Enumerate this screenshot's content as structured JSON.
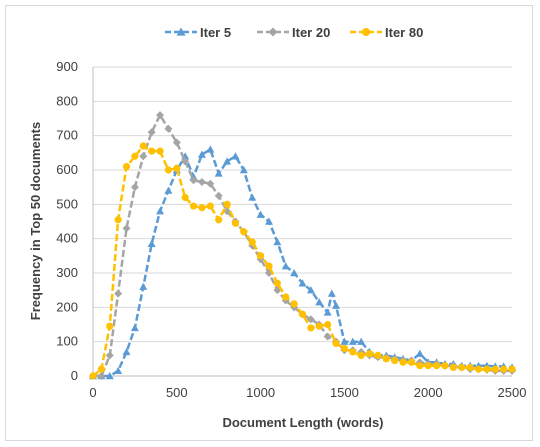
{
  "chart_data": {
    "type": "line",
    "title": "",
    "xlabel": "Document Length (words)",
    "ylabel": "Frequency in Top 50 documents",
    "xlim": [
      0,
      2500
    ],
    "ylim": [
      0,
      900
    ],
    "x_ticks": [
      0,
      500,
      1000,
      1500,
      2000,
      2500
    ],
    "y_ticks": [
      0,
      100,
      200,
      300,
      400,
      500,
      600,
      700,
      800,
      900
    ],
    "grid": "horizontal",
    "legend_position": "top",
    "series": [
      {
        "name": "Iter 5",
        "color": "#5b9bd5",
        "marker": "triangle",
        "dash": "dashed",
        "points": [
          [
            0,
            0
          ],
          [
            50,
            0
          ],
          [
            100,
            0
          ],
          [
            150,
            15
          ],
          [
            200,
            70
          ],
          [
            250,
            140
          ],
          [
            300,
            260
          ],
          [
            350,
            385
          ],
          [
            400,
            480
          ],
          [
            450,
            540
          ],
          [
            500,
            600
          ],
          [
            550,
            640
          ],
          [
            600,
            580
          ],
          [
            650,
            645
          ],
          [
            700,
            660
          ],
          [
            750,
            590
          ],
          [
            800,
            625
          ],
          [
            850,
            640
          ],
          [
            900,
            600
          ],
          [
            950,
            520
          ],
          [
            1000,
            470
          ],
          [
            1050,
            450
          ],
          [
            1100,
            390
          ],
          [
            1150,
            320
          ],
          [
            1200,
            300
          ],
          [
            1250,
            270
          ],
          [
            1300,
            250
          ],
          [
            1350,
            215
          ],
          [
            1400,
            185
          ],
          [
            1425,
            240
          ],
          [
            1450,
            205
          ],
          [
            1500,
            100
          ],
          [
            1550,
            100
          ],
          [
            1600,
            100
          ],
          [
            1650,
            70
          ],
          [
            1700,
            60
          ],
          [
            1750,
            60
          ],
          [
            1800,
            55
          ],
          [
            1850,
            50
          ],
          [
            1900,
            45
          ],
          [
            1950,
            65
          ],
          [
            2000,
            40
          ],
          [
            2050,
            40
          ],
          [
            2100,
            35
          ],
          [
            2150,
            35
          ],
          [
            2200,
            30
          ],
          [
            2250,
            30
          ],
          [
            2300,
            30
          ],
          [
            2350,
            30
          ],
          [
            2400,
            28
          ],
          [
            2450,
            28
          ],
          [
            2500,
            25
          ]
        ]
      },
      {
        "name": "Iter 20",
        "color": "#a5a5a5",
        "marker": "diamond",
        "dash": "dashed",
        "points": [
          [
            0,
            0
          ],
          [
            50,
            0
          ],
          [
            100,
            60
          ],
          [
            150,
            240
          ],
          [
            200,
            430
          ],
          [
            250,
            550
          ],
          [
            300,
            640
          ],
          [
            350,
            710
          ],
          [
            400,
            760
          ],
          [
            450,
            720
          ],
          [
            500,
            680
          ],
          [
            550,
            625
          ],
          [
            600,
            570
          ],
          [
            650,
            565
          ],
          [
            700,
            560
          ],
          [
            750,
            525
          ],
          [
            800,
            480
          ],
          [
            850,
            450
          ],
          [
            900,
            420
          ],
          [
            950,
            380
          ],
          [
            1000,
            340
          ],
          [
            1050,
            300
          ],
          [
            1100,
            250
          ],
          [
            1150,
            220
          ],
          [
            1200,
            200
          ],
          [
            1250,
            180
          ],
          [
            1300,
            165
          ],
          [
            1350,
            150
          ],
          [
            1400,
            115
          ],
          [
            1450,
            100
          ],
          [
            1500,
            75
          ],
          [
            1550,
            75
          ],
          [
            1600,
            70
          ],
          [
            1650,
            60
          ],
          [
            1700,
            55
          ],
          [
            1750,
            55
          ],
          [
            1800,
            50
          ],
          [
            1850,
            45
          ],
          [
            1900,
            45
          ],
          [
            1950,
            40
          ],
          [
            2000,
            35
          ],
          [
            2050,
            35
          ],
          [
            2100,
            30
          ],
          [
            2150,
            30
          ],
          [
            2200,
            25
          ],
          [
            2250,
            20
          ],
          [
            2300,
            20
          ],
          [
            2350,
            18
          ],
          [
            2400,
            15
          ],
          [
            2450,
            15
          ],
          [
            2500,
            15
          ]
        ]
      },
      {
        "name": "Iter 80",
        "color": "#ffc000",
        "marker": "circle",
        "dash": "dashed",
        "points": [
          [
            0,
            0
          ],
          [
            50,
            20
          ],
          [
            100,
            145
          ],
          [
            150,
            455
          ],
          [
            200,
            610
          ],
          [
            250,
            640
          ],
          [
            300,
            670
          ],
          [
            350,
            655
          ],
          [
            400,
            655
          ],
          [
            450,
            600
          ],
          [
            500,
            605
          ],
          [
            550,
            520
          ],
          [
            600,
            495
          ],
          [
            650,
            490
          ],
          [
            700,
            495
          ],
          [
            750,
            455
          ],
          [
            800,
            500
          ],
          [
            850,
            445
          ],
          [
            900,
            420
          ],
          [
            950,
            390
          ],
          [
            1000,
            350
          ],
          [
            1050,
            320
          ],
          [
            1100,
            270
          ],
          [
            1150,
            230
          ],
          [
            1200,
            210
          ],
          [
            1250,
            180
          ],
          [
            1300,
            140
          ],
          [
            1350,
            145
          ],
          [
            1400,
            150
          ],
          [
            1450,
            95
          ],
          [
            1500,
            80
          ],
          [
            1550,
            70
          ],
          [
            1600,
            60
          ],
          [
            1650,
            65
          ],
          [
            1700,
            60
          ],
          [
            1750,
            50
          ],
          [
            1800,
            45
          ],
          [
            1850,
            40
          ],
          [
            1900,
            40
          ],
          [
            1950,
            30
          ],
          [
            2000,
            30
          ],
          [
            2050,
            30
          ],
          [
            2100,
            30
          ],
          [
            2150,
            25
          ],
          [
            2200,
            25
          ],
          [
            2250,
            25
          ],
          [
            2300,
            20
          ],
          [
            2350,
            20
          ],
          [
            2400,
            20
          ],
          [
            2450,
            20
          ],
          [
            2500,
            20
          ]
        ]
      }
    ]
  }
}
